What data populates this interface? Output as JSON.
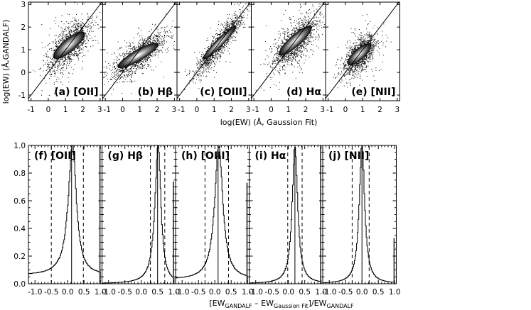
{
  "chart_data": [
    {
      "type": "scatter",
      "description_panels": "top row",
      "xlabel": "log(EW) (Å, Gaussion Fit)",
      "ylabel": "log(EW)  (Å,GANDALF)",
      "xlim": [
        -1.15,
        3.15
      ],
      "ylim": [
        -1.25,
        3.1
      ],
      "x_ticks": [
        "-1",
        "0",
        "1",
        "2",
        "3"
      ],
      "y_ticks": [
        "-1",
        "0",
        "1",
        "2",
        "3"
      ],
      "panels": [
        {
          "label": "(a) [OII]",
          "cx": 1.2,
          "cy": 1.2,
          "spread_major": 0.55,
          "spread_minor": 0.18,
          "angle_deg": 40,
          "outlier_frac": 0.25
        },
        {
          "label": "(b) Hβ",
          "cx": 0.9,
          "cy": 0.75,
          "spread_major": 0.65,
          "spread_minor": 0.15,
          "angle_deg": 30,
          "outlier_frac": 0.18
        },
        {
          "label": "(c) [OIII]",
          "cx": 1.3,
          "cy": 1.3,
          "spread_major": 0.65,
          "spread_minor": 0.1,
          "angle_deg": 45,
          "outlier_frac": 0.25
        },
        {
          "label": "(d) Hα",
          "cx": 1.4,
          "cy": 1.4,
          "spread_major": 0.6,
          "spread_minor": 0.16,
          "angle_deg": 42,
          "outlier_frac": 0.3
        },
        {
          "label": "(e) [NII]",
          "cx": 0.8,
          "cy": 0.8,
          "spread_major": 0.42,
          "spread_minor": 0.15,
          "angle_deg": 42,
          "outlier_frac": 0.25
        }
      ]
    },
    {
      "type": "line",
      "description_panels": "bottom row histograms",
      "xlabel_parts": [
        "[EW",
        "GANDALF",
        " – EW",
        "Gaussion Fit",
        "]/EW",
        "GANDALF"
      ],
      "xlim": [
        -1.2,
        1.05
      ],
      "ylim": [
        0.0,
        1.0
      ],
      "x_ticks": [
        "-1.0",
        "-0.5",
        "0.0",
        "0.5",
        "1.0"
      ],
      "y_ticks": [
        "0.0",
        "0.2",
        "0.4",
        "0.6",
        "0.8",
        "1.0"
      ],
      "panels": [
        {
          "label": "(f) [OII]",
          "peak": 0.15,
          "width_left": 0.16,
          "width_right": 0.14,
          "floor": 0.06,
          "dashed": [
            -0.5,
            0.48
          ],
          "solid": 0.12,
          "end_spike": 1.0
        },
        {
          "label": "(g) Hβ",
          "peak": 0.52,
          "width_left": 0.12,
          "width_right": 0.1,
          "floor": 0.0,
          "dashed": [
            0.28,
            0.72
          ],
          "solid": 0.5,
          "end_spike": 0.74
        },
        {
          "label": "(h) [OIII]",
          "peak": 0.12,
          "width_left": 0.15,
          "width_right": 0.15,
          "floor": 0.03,
          "dashed": [
            -0.3,
            0.42
          ],
          "solid": 0.1,
          "end_spike": 0.73
        },
        {
          "label": "(i) Hα",
          "peak": 0.2,
          "width_left": 0.1,
          "width_right": 0.1,
          "floor": 0.0,
          "dashed": [
            -0.02,
            0.42
          ],
          "solid": 0.2,
          "end_spike": 1.0
        },
        {
          "label": "(j) [NII]",
          "peak": 0.0,
          "width_left": 0.1,
          "width_right": 0.1,
          "floor": 0.0,
          "dashed": [
            -0.3,
            0.22
          ],
          "solid": 0.0,
          "end_spike": 0.33
        }
      ]
    }
  ]
}
